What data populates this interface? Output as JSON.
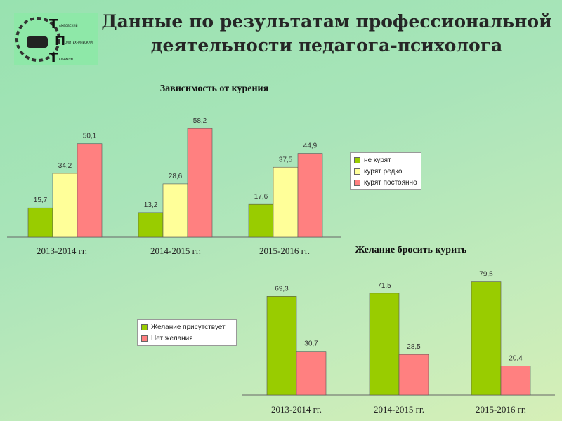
{
  "title": "Данные по результатам профессиональной деятельности педагога-психолога",
  "logo": {
    "letters": [
      "Т",
      "П",
      "Т"
    ],
    "words": [
      "АМБОВСКИЙ",
      "ОЛИТЕХНИЧЕСКИЙ",
      "ЕХНИКУМ"
    ]
  },
  "chart_data": [
    {
      "type": "bar",
      "title": "Зависимость от курения",
      "categories": [
        "2013-2014 гг.",
        "2014-2015 гг.",
        "2015-2016 гг."
      ],
      "series": [
        {
          "name": "не курят",
          "color": "#99cc00",
          "values": [
            15.7,
            13.2,
            17.6
          ]
        },
        {
          "name": "курят редко",
          "color": "#ffff99",
          "values": [
            34.2,
            28.6,
            37.5
          ]
        },
        {
          "name": "курят постоянно",
          "color": "#ff8080",
          "values": [
            50.1,
            58.2,
            44.9
          ]
        }
      ],
      "labels": [
        [
          "15,7",
          "13,2",
          "17,6"
        ],
        [
          "34,2",
          "28,6",
          "37,5"
        ],
        [
          "50,1",
          "58,2",
          "44,9"
        ]
      ],
      "legend": "right",
      "grid": false
    },
    {
      "type": "bar",
      "title": "Желание бросить курить",
      "categories": [
        "2013-2014 гг.",
        "2014-2015 гг.",
        "2015-2016 гг."
      ],
      "series": [
        {
          "name": "Желание присутствует",
          "color": "#99cc00",
          "values": [
            69.3,
            71.5,
            79.5
          ]
        },
        {
          "name": "Нет желания",
          "color": "#ff8080",
          "values": [
            30.7,
            28.5,
            20.4
          ]
        }
      ],
      "labels": [
        [
          "69,3",
          "71,5",
          "79,5"
        ],
        [
          "30,7",
          "28,5",
          "20,4"
        ]
      ],
      "legend": "left",
      "grid": false
    }
  ]
}
